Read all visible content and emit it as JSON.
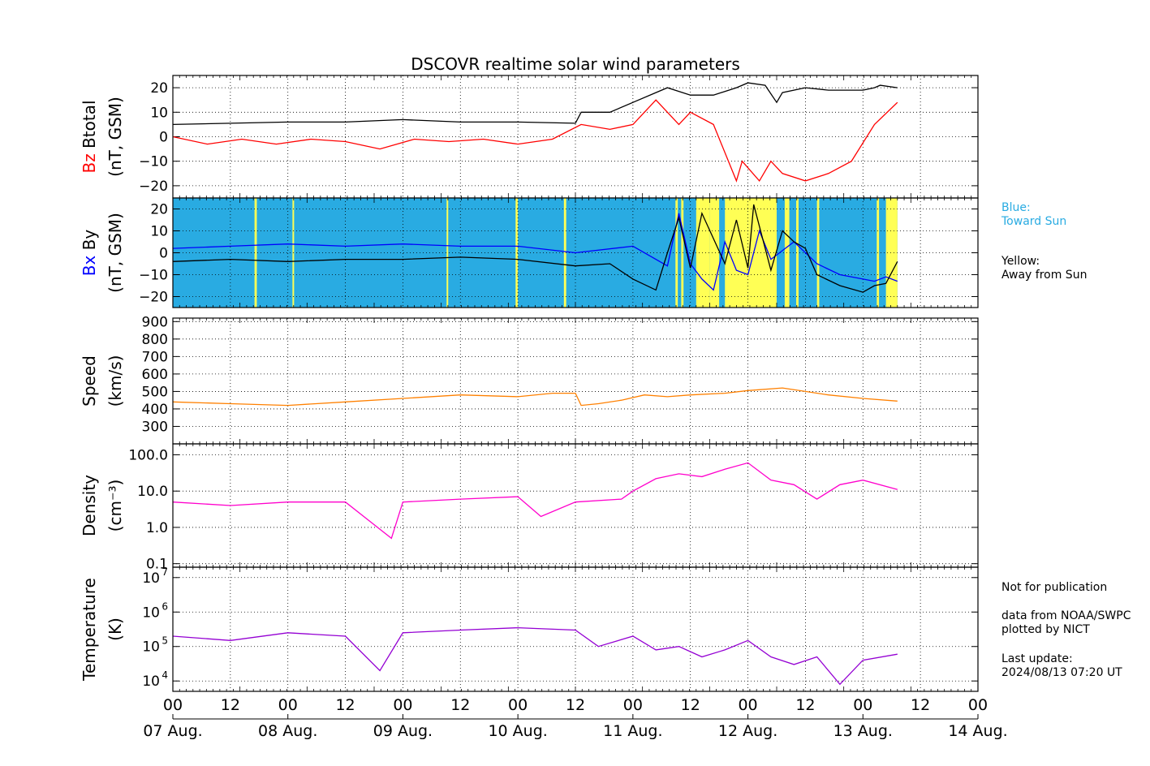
{
  "chart_data": {
    "title": "DSCOVR realtime solar wind parameters",
    "type": "line",
    "x_axis": {
      "range_days": [
        0,
        7
      ],
      "hour_tick_labels": [
        "00",
        "12",
        "00",
        "12",
        "00",
        "12",
        "00",
        "12",
        "00",
        "12",
        "00",
        "12",
        "00",
        "12",
        "00"
      ],
      "date_labels": [
        "07 Aug.",
        "08 Aug.",
        "09 Aug.",
        "10 Aug.",
        "11 Aug.",
        "12 Aug.",
        "13 Aug.",
        "14 Aug."
      ],
      "data_end_day": 6.3
    },
    "panels": [
      {
        "id": "bfield",
        "label_colored": "Bz",
        "label_black": "Btotal",
        "unit": "(nT, GSM)",
        "ylim": [
          -25,
          25
        ],
        "yticks": [
          20,
          10,
          0,
          -10,
          -20
        ],
        "ytick_labels": [
          "20",
          "10",
          "0",
          "−10",
          "−20"
        ],
        "series": [
          {
            "name": "Btotal",
            "color": "#000000",
            "x": [
              0,
              0.5,
              1,
              1.5,
              2,
              2.5,
              3,
              3.5,
              3.55,
              3.8,
              4.0,
              4.2,
              4.3,
              4.5,
              4.7,
              4.9,
              5.0,
              5.15,
              5.25,
              5.3,
              5.5,
              5.7,
              5.9,
              6.0,
              6.1,
              6.15,
              6.3
            ],
            "y": [
              5,
              5.5,
              6,
              6,
              7,
              6,
              6,
              5.5,
              10,
              10,
              14,
              18,
              20,
              17,
              17,
              20,
              22,
              21,
              14,
              18,
              20,
              19,
              19,
              19,
              20,
              21,
              20
            ]
          },
          {
            "name": "Bz",
            "color": "#ff0000",
            "x": [
              0,
              0.3,
              0.6,
              0.9,
              1.2,
              1.5,
              1.8,
              2.1,
              2.4,
              2.7,
              3.0,
              3.3,
              3.55,
              3.8,
              4.0,
              4.2,
              4.4,
              4.5,
              4.7,
              4.9,
              4.95,
              5.1,
              5.2,
              5.3,
              5.5,
              5.7,
              5.9,
              6.1,
              6.3
            ],
            "y": [
              0,
              -3,
              -1,
              -3,
              -1,
              -2,
              -5,
              -1,
              -2,
              -1,
              -3,
              -1,
              5,
              3,
              5,
              15,
              5,
              10,
              5,
              -18,
              -10,
              -18,
              -10,
              -15,
              -18,
              -15,
              -10,
              5,
              14
            ]
          }
        ]
      },
      {
        "id": "bxby",
        "label_colored": "Bx",
        "label_black": "By",
        "unit": "(nT, GSM)",
        "ylim": [
          -25,
          25
        ],
        "yticks": [
          20,
          10,
          0,
          -10,
          -20
        ],
        "ytick_labels": [
          "20",
          "10",
          "0",
          "−10",
          "−20"
        ],
        "series": [
          {
            "name": "Bx",
            "color": "#0000ff",
            "x": [
              0,
              0.5,
              1,
              1.5,
              2,
              2.5,
              3,
              3.5,
              4.0,
              4.3,
              4.4,
              4.5,
              4.6,
              4.7,
              4.8,
              4.9,
              5.0,
              5.1,
              5.2,
              5.4,
              5.6,
              5.8,
              6.0,
              6.1,
              6.2,
              6.3
            ],
            "y": [
              2,
              3,
              4,
              3,
              4,
              3,
              3,
              0,
              3,
              -6,
              18,
              -5,
              -12,
              -17,
              5,
              -8,
              -10,
              10,
              -3,
              5,
              -5,
              -10,
              -12,
              -13,
              -11,
              -13
            ]
          },
          {
            "name": "By",
            "color": "#000000",
            "x": [
              0,
              0.5,
              1,
              1.5,
              2,
              2.5,
              3,
              3.5,
              3.8,
              4.0,
              4.2,
              4.3,
              4.4,
              4.5,
              4.6,
              4.8,
              4.9,
              5.0,
              5.05,
              5.2,
              5.3,
              5.4,
              5.5,
              5.6,
              5.8,
              6.0,
              6.1,
              6.2,
              6.3
            ],
            "y": [
              -4,
              -3,
              -4,
              -3,
              -3,
              -2,
              -3,
              -6,
              -5,
              -12,
              -17,
              0,
              16,
              -7,
              18,
              -5,
              15,
              -7,
              22,
              -8,
              10,
              5,
              2,
              -10,
              -15,
              -18,
              -15,
              -14,
              -4
            ]
          }
        ],
        "background_bands": {
          "toward_color": "#29abe2",
          "away_color": "#ffff55",
          "away_intervals_days": [
            [
              0.71,
              0.73
            ],
            [
              1.04,
              1.05
            ],
            [
              2.38,
              2.39
            ],
            [
              2.98,
              3.0
            ],
            [
              3.4,
              3.42
            ],
            [
              4.37,
              4.39
            ],
            [
              4.42,
              4.44
            ],
            [
              4.55,
              4.67
            ],
            [
              4.67,
              4.75
            ],
            [
              4.8,
              5.0
            ],
            [
              5.0,
              5.25
            ],
            [
              5.32,
              5.36
            ],
            [
              5.42,
              5.44
            ],
            [
              5.6,
              5.62
            ],
            [
              6.12,
              6.14
            ],
            [
              6.2,
              6.3
            ]
          ]
        }
      },
      {
        "id": "speed",
        "label": "Speed",
        "unit": "(km/s)",
        "ylim": [
          200,
          920
        ],
        "yticks": [
          900,
          800,
          700,
          600,
          500,
          400,
          300
        ],
        "ytick_labels": [
          "900",
          "800",
          "700",
          "600",
          "500",
          "400",
          "300"
        ],
        "series": [
          {
            "name": "Speed",
            "color": "#ff8000",
            "x": [
              0,
              0.5,
              1,
              1.5,
              2,
              2.5,
              3,
              3.3,
              3.5,
              3.55,
              3.7,
              3.9,
              4.1,
              4.3,
              4.5,
              4.8,
              5.0,
              5.3,
              5.5,
              5.7,
              6.0,
              6.3
            ],
            "y": [
              440,
              430,
              420,
              440,
              460,
              480,
              470,
              490,
              490,
              420,
              430,
              450,
              480,
              470,
              480,
              490,
              505,
              520,
              500,
              480,
              460,
              445
            ]
          }
        ]
      },
      {
        "id": "density",
        "label": "Density",
        "unit": "(cm⁻³)",
        "scale": "log",
        "ylim": [
          0.08,
          200
        ],
        "yticks": [
          100,
          10,
          1,
          0.1
        ],
        "ytick_labels": [
          "100.0",
          "10.0",
          "1.0",
          "0.1"
        ],
        "series": [
          {
            "name": "Density",
            "color": "#ff00cc",
            "x": [
              0,
              0.5,
              1,
              1.5,
              1.9,
              2.0,
              2.5,
              3.0,
              3.2,
              3.5,
              3.9,
              4.0,
              4.2,
              4.4,
              4.6,
              4.8,
              5.0,
              5.2,
              5.4,
              5.6,
              5.8,
              6.0,
              6.3
            ],
            "y": [
              5,
              4,
              5,
              5,
              0.5,
              5,
              6,
              7,
              2,
              5,
              6,
              10,
              22,
              30,
              25,
              40,
              60,
              20,
              15,
              6,
              15,
              20,
              11
            ]
          }
        ]
      },
      {
        "id": "temperature",
        "label": "Temperature",
        "unit": "(K)",
        "scale": "log",
        "ylim": [
          5000,
          20000000
        ],
        "yticks": [
          10000000,
          1000000,
          100000,
          10000
        ],
        "ytick_labels": [
          "10",
          "10",
          "10",
          "10"
        ],
        "ytick_exponents": [
          "7",
          "6",
          "5",
          "4"
        ],
        "series": [
          {
            "name": "Temperature",
            "color": "#9400d3",
            "x": [
              0,
              0.5,
              1,
              1.5,
              1.8,
              2.0,
              2.5,
              3.0,
              3.5,
              3.7,
              4.0,
              4.2,
              4.4,
              4.6,
              4.8,
              5.0,
              5.2,
              5.4,
              5.6,
              5.8,
              6.0,
              6.3
            ],
            "y": [
              200000,
              150000,
              250000,
              200000,
              20000,
              250000,
              300000,
              350000,
              300000,
              100000,
              200000,
              80000,
              100000,
              50000,
              80000,
              150000,
              50000,
              30000,
              50000,
              8000,
              40000,
              60000
            ]
          }
        ]
      }
    ],
    "legend": {
      "blue_label": "Blue:\nToward Sun",
      "yellow_label": "Yellow:\nAway from Sun"
    }
  },
  "notes": {
    "publication": "Not for publication",
    "source": "data from NOAA/SWPC\nplotted by NICT",
    "update": "Last update:\n2024/08/13 07:20 UT"
  }
}
